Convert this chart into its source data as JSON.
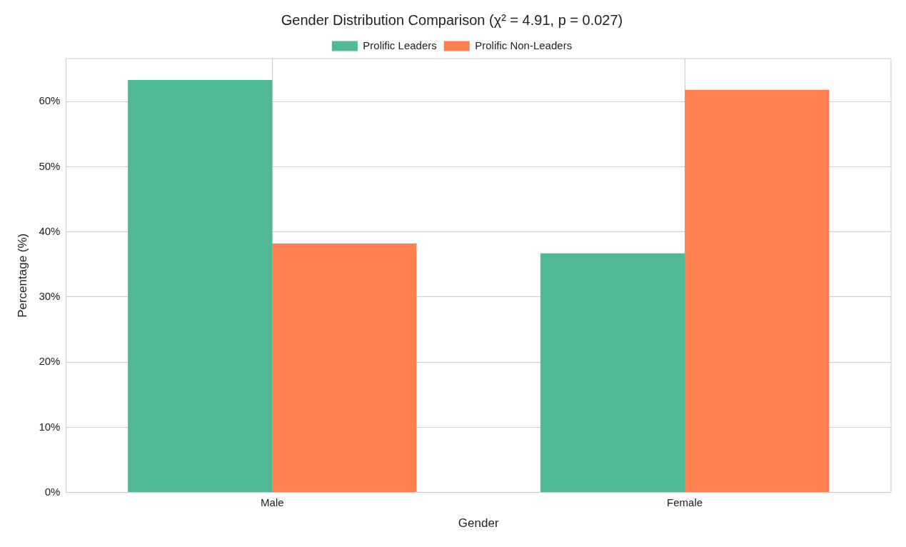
{
  "chart_data": {
    "type": "bar",
    "title": "Gender Distribution Comparison (χ² = 4.91, p = 0.027)",
    "xlabel": "Gender",
    "ylabel": "Percentage (%)",
    "categories": [
      "Male",
      "Female"
    ],
    "series": [
      {
        "name": "Prolific Leaders",
        "color": "#52b996",
        "values": [
          63.3,
          36.7
        ]
      },
      {
        "name": "Prolific Non-Leaders",
        "color": "#fe7f4f",
        "values": [
          38.2,
          61.8
        ]
      }
    ],
    "ylim": [
      0,
      66.6
    ],
    "yticks": [
      {
        "value": 0,
        "label": "0%"
      },
      {
        "value": 10,
        "label": "10%"
      },
      {
        "value": 20,
        "label": "20%"
      },
      {
        "value": 30,
        "label": "30%"
      },
      {
        "value": 40,
        "label": "40%"
      },
      {
        "value": 50,
        "label": "50%"
      },
      {
        "value": 60,
        "label": "60%"
      }
    ],
    "grid": true,
    "legend": "top"
  }
}
